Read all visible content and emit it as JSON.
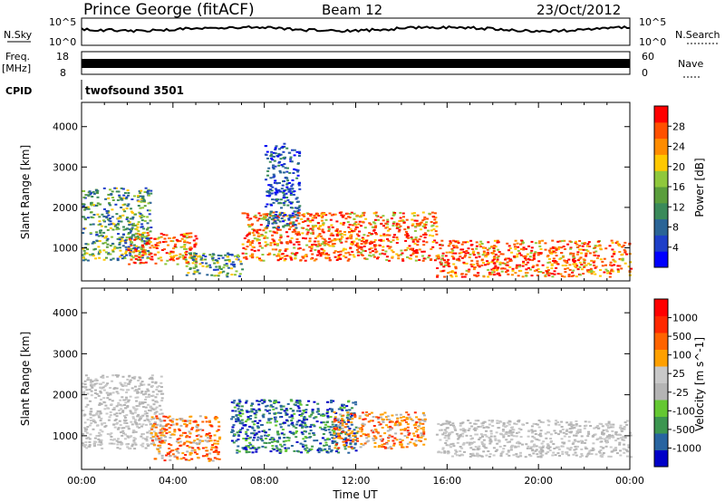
{
  "header": {
    "station": "Prince George (fitACF)",
    "beam": "Beam 12",
    "date": "23/Oct/2012"
  },
  "noise_panel": {
    "left_label": "N.Sky",
    "right_label": "N.Search",
    "left_ticks": [
      "10^5",
      "10^0"
    ],
    "right_ticks": [
      "10^5",
      "10^0"
    ]
  },
  "freq_panel": {
    "left_label_1": "Freq.",
    "left_label_2": "[MHz]",
    "right_label": "Nave",
    "left_ticks": [
      "18",
      "8"
    ],
    "right_ticks": [
      "60",
      "0"
    ]
  },
  "cpid_panel": {
    "label": "CPID",
    "value": "twofsound 3501"
  },
  "colors": {
    "power_scale": [
      "#0000ff",
      "#1e3fc8",
      "#2a6496",
      "#3a8a5a",
      "#5a9e3c",
      "#8fc83c",
      "#ffc800",
      "#ff8c00",
      "#ff5000",
      "#ff0000"
    ],
    "velocity_scale": [
      "#0000c8",
      "#2864a0",
      "#3c9650",
      "#64c832",
      "#b4b4b4",
      "#c8c8c8",
      "#ffa000",
      "#ff6400",
      "#ff2800",
      "#ff0000"
    ]
  },
  "chart_data": [
    {
      "type": "heatmap",
      "name": "power",
      "xlabel": "Time UT",
      "ylabel": "Slant Range [km]",
      "xlim": [
        0,
        24
      ],
      "ylim": [
        180,
        4600
      ],
      "yticks": [
        "1000",
        "2000",
        "3000",
        "4000"
      ],
      "colorbar_label": "Power [dB]",
      "colorbar_ticks": [
        "4",
        "8",
        "12",
        "16",
        "20",
        "24",
        "28"
      ],
      "regions": [
        {
          "t0": 0.0,
          "t1": 3.0,
          "r0": 700,
          "r1": 2500,
          "level": "mid"
        },
        {
          "t0": 2.0,
          "t1": 5.0,
          "r0": 600,
          "r1": 1400,
          "level": "high"
        },
        {
          "t0": 4.5,
          "t1": 7.0,
          "r0": 300,
          "r1": 900,
          "level": "mid"
        },
        {
          "t0": 7.0,
          "t1": 15.5,
          "r0": 700,
          "r1": 1900,
          "level": "high"
        },
        {
          "t0": 8.0,
          "t1": 9.5,
          "r0": 1500,
          "r1": 3600,
          "level": "low"
        },
        {
          "t0": 15.5,
          "t1": 24.0,
          "r0": 300,
          "r1": 1200,
          "level": "high"
        }
      ]
    },
    {
      "type": "heatmap",
      "name": "velocity",
      "xlabel": "Time UT",
      "ylabel": "Slant Range [km]",
      "xlim": [
        0,
        24
      ],
      "ylim": [
        180,
        4600
      ],
      "yticks": [
        "1000",
        "2000",
        "3000",
        "4000"
      ],
      "xticks": [
        "00:00",
        "04:00",
        "08:00",
        "12:00",
        "16:00",
        "20:00",
        "00:00"
      ],
      "colorbar_label": "Velocity [m s^-1]",
      "colorbar_ticks": [
        "1000",
        "500",
        "100",
        "25",
        "-25",
        "-100",
        "-500",
        "-1000"
      ],
      "regions": [
        {
          "t0": 0.0,
          "t1": 3.5,
          "r0": 700,
          "r1": 2500,
          "level": "ground"
        },
        {
          "t0": 3.0,
          "t1": 6.0,
          "r0": 400,
          "r1": 1500,
          "level": "away"
        },
        {
          "t0": 6.5,
          "t1": 12.0,
          "r0": 600,
          "r1": 1900,
          "level": "toward"
        },
        {
          "t0": 11.0,
          "t1": 15.0,
          "r0": 700,
          "r1": 1600,
          "level": "away"
        },
        {
          "t0": 15.5,
          "t1": 24.0,
          "r0": 500,
          "r1": 1400,
          "level": "ground"
        }
      ]
    }
  ]
}
